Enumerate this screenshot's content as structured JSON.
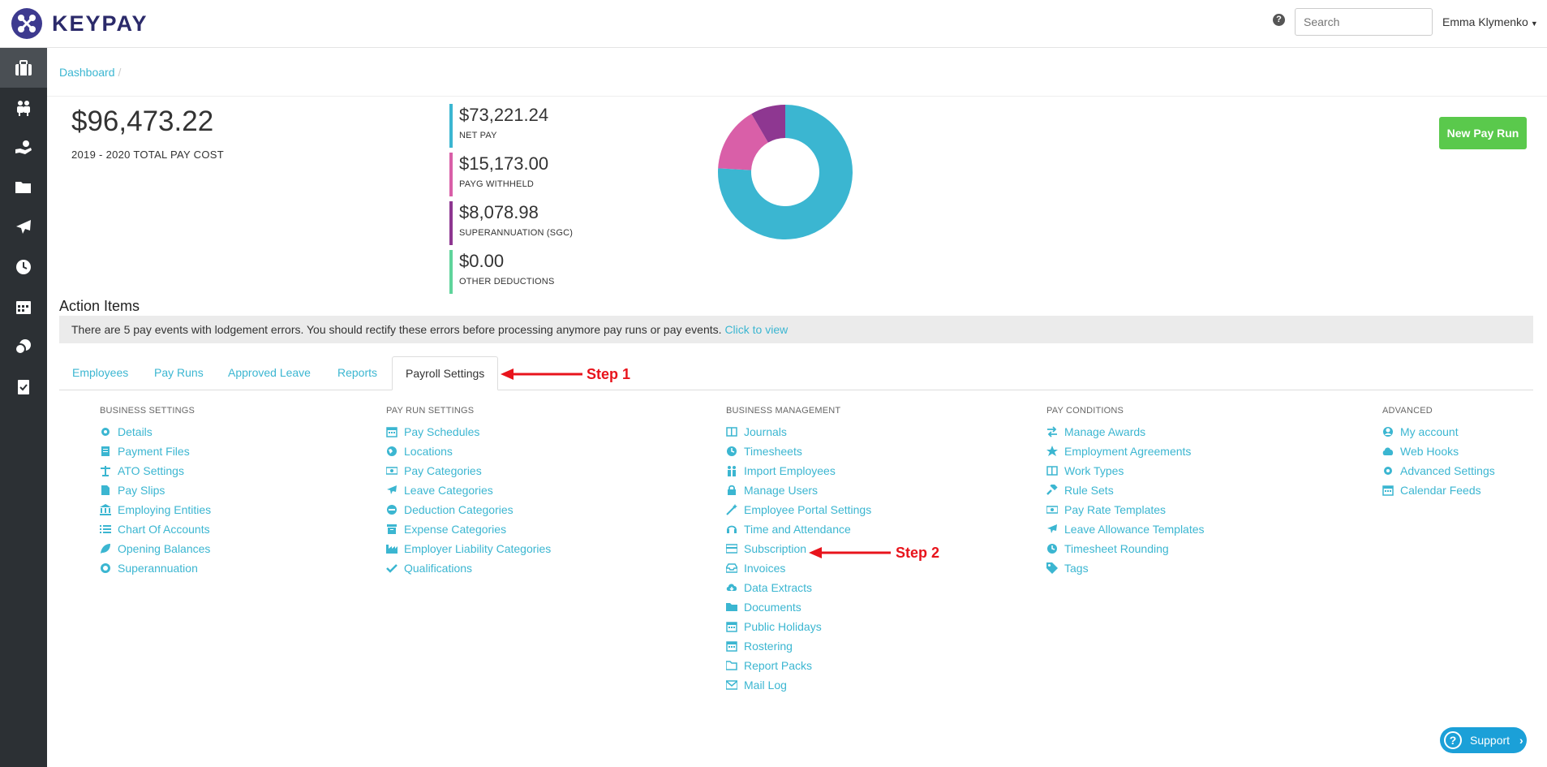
{
  "app": {
    "logo_text": "KEYPAY"
  },
  "header": {
    "help": "?",
    "search_placeholder": "Search",
    "user_name": "Emma Klymenko"
  },
  "sidebar": {
    "items": [
      "briefcase-icon",
      "people-icon",
      "hand-money-icon",
      "folder-icon",
      "plane-icon",
      "clock-icon",
      "calendar-icon",
      "coins-icon",
      "clipboard-icon"
    ]
  },
  "breadcrumb": {
    "items": [
      "Dashboard"
    ],
    "separator": "/"
  },
  "summary": {
    "total": "$96,473.22",
    "total_label": "2019 - 2020 TOTAL PAY COST",
    "stats": [
      {
        "amount": "$73,221.24",
        "label": "NET PAY",
        "color": "#3bb6d1"
      },
      {
        "amount": "$15,173.00",
        "label": "PAYG WITHHELD",
        "color": "#d95fa8"
      },
      {
        "amount": "$8,078.98",
        "label": "SUPERANNUATION (SGC)",
        "color": "#8e3791"
      },
      {
        "amount": "$0.00",
        "label": "OTHER DEDUCTIONS",
        "color": "#5fd49b"
      }
    ]
  },
  "chart_data": {
    "type": "pie",
    "categories": [
      "NET PAY",
      "PAYG WITHHELD",
      "SUPERANNUATION (SGC)",
      "OTHER DEDUCTIONS"
    ],
    "values": [
      73221.24,
      15173.0,
      8078.98,
      0.0
    ],
    "colors": [
      "#3bb6d1",
      "#d95fa8",
      "#8e3791",
      "#5fd49b"
    ]
  },
  "actions": {
    "new_pay_run": "New Pay Run",
    "title": "Action Items",
    "message": "There are 5 pay events with lodgement errors. You should rectify these errors before processing anymore pay runs or pay events.",
    "link": "Click to view"
  },
  "tabs": [
    "Employees",
    "Pay Runs",
    "Approved Leave",
    "Reports",
    "Payroll Settings"
  ],
  "annotations": {
    "step1": "Step 1",
    "step2": "Step 2"
  },
  "columns": [
    {
      "heading": "BUSINESS SETTINGS",
      "links": [
        {
          "label": "Details",
          "icon": "gear-icon"
        },
        {
          "label": "Payment Files",
          "icon": "file-lines-icon"
        },
        {
          "label": "ATO Settings",
          "icon": "scale-icon"
        },
        {
          "label": "Pay Slips",
          "icon": "file-icon"
        },
        {
          "label": "Employing Entities",
          "icon": "bank-icon"
        },
        {
          "label": "Chart Of Accounts",
          "icon": "list-icon"
        },
        {
          "label": "Opening Balances",
          "icon": "leaf-icon"
        },
        {
          "label": "Superannuation",
          "icon": "lifering-icon"
        }
      ]
    },
    {
      "heading": "PAY RUN SETTINGS",
      "links": [
        {
          "label": "Pay Schedules",
          "icon": "calendar-icon"
        },
        {
          "label": "Locations",
          "icon": "globe-icon"
        },
        {
          "label": "Pay Categories",
          "icon": "money-icon"
        },
        {
          "label": "Leave Categories",
          "icon": "plane-icon"
        },
        {
          "label": "Deduction Categories",
          "icon": "minus-circle-icon"
        },
        {
          "label": "Expense Categories",
          "icon": "archive-icon"
        },
        {
          "label": "Employer Liability Categories",
          "icon": "industry-icon"
        },
        {
          "label": "Qualifications",
          "icon": "check-icon"
        }
      ]
    },
    {
      "heading": "BUSINESS MANAGEMENT",
      "links": [
        {
          "label": "Journals",
          "icon": "book-icon"
        },
        {
          "label": "Timesheets",
          "icon": "clock-icon"
        },
        {
          "label": "Import Employees",
          "icon": "people-icon"
        },
        {
          "label": "Manage Users",
          "icon": "lock-icon"
        },
        {
          "label": "Employee Portal Settings",
          "icon": "wand-icon"
        },
        {
          "label": "Time and Attendance",
          "icon": "headset-icon"
        },
        {
          "label": "Subscription",
          "icon": "credit-card-icon"
        },
        {
          "label": "Invoices",
          "icon": "inbox-icon"
        },
        {
          "label": "Data Extracts",
          "icon": "cloud-download-icon"
        },
        {
          "label": "Documents",
          "icon": "folder-icon"
        },
        {
          "label": "Public Holidays",
          "icon": "calendar-icon"
        },
        {
          "label": "Rostering",
          "icon": "calendar-icon"
        },
        {
          "label": "Report Packs",
          "icon": "folder-open-icon"
        },
        {
          "label": "Mail Log",
          "icon": "envelope-icon"
        }
      ]
    },
    {
      "heading": "PAY CONDITIONS",
      "links": [
        {
          "label": "Manage Awards",
          "icon": "exchange-icon"
        },
        {
          "label": "Employment Agreements",
          "icon": "star-icon"
        },
        {
          "label": "Work Types",
          "icon": "book-icon"
        },
        {
          "label": "Rule Sets",
          "icon": "gavel-icon"
        },
        {
          "label": "Pay Rate Templates",
          "icon": "money-icon"
        },
        {
          "label": "Leave Allowance Templates",
          "icon": "plane-icon"
        },
        {
          "label": "Timesheet Rounding",
          "icon": "clock-icon"
        },
        {
          "label": "Tags",
          "icon": "tag-icon"
        }
      ]
    },
    {
      "heading": "ADVANCED",
      "links": [
        {
          "label": "My account",
          "icon": "user-circle-icon"
        },
        {
          "label": "Web Hooks",
          "icon": "cloud-icon"
        },
        {
          "label": "Advanced Settings",
          "icon": "gear-icon"
        },
        {
          "label": "Calendar Feeds",
          "icon": "calendar-icon"
        }
      ]
    }
  ],
  "support": {
    "label": "Support",
    "q": "?",
    "chevron": "›"
  }
}
